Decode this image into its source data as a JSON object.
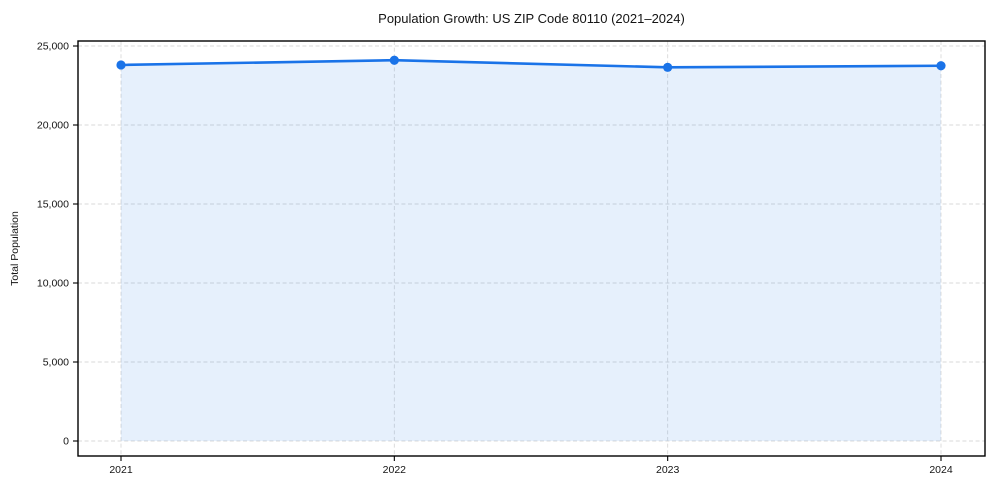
{
  "chart_data": {
    "type": "area",
    "title": "Population Growth: US ZIP Code 80110 (2021–2024)",
    "xlabel": "",
    "ylabel": "Total Population",
    "categories": [
      "2021",
      "2022",
      "2023",
      "2024"
    ],
    "series": [
      {
        "name": "Total Population",
        "values": [
          23800,
          24100,
          23650,
          23750
        ]
      }
    ],
    "ylim": [
      0,
      25000
    ],
    "yticks": [
      0,
      5000,
      10000,
      15000,
      20000,
      25000
    ],
    "ytick_labels": [
      "0",
      "5,000",
      "10,000",
      "15,000",
      "20,000",
      "25,000"
    ],
    "xtick_labels": [
      "2021",
      "2022",
      "2023",
      "2024"
    ],
    "grid": "dashed-both-axes",
    "legend": "none",
    "marker": "circle",
    "colors": {
      "line": "#1a73e8",
      "marker": "#1a73e8",
      "fill": "#1a73e8",
      "fill_opacity": 0.11,
      "grid": "#d9d9d9",
      "spine": "#000000",
      "text": "#141414",
      "background": "#ffffff"
    }
  }
}
